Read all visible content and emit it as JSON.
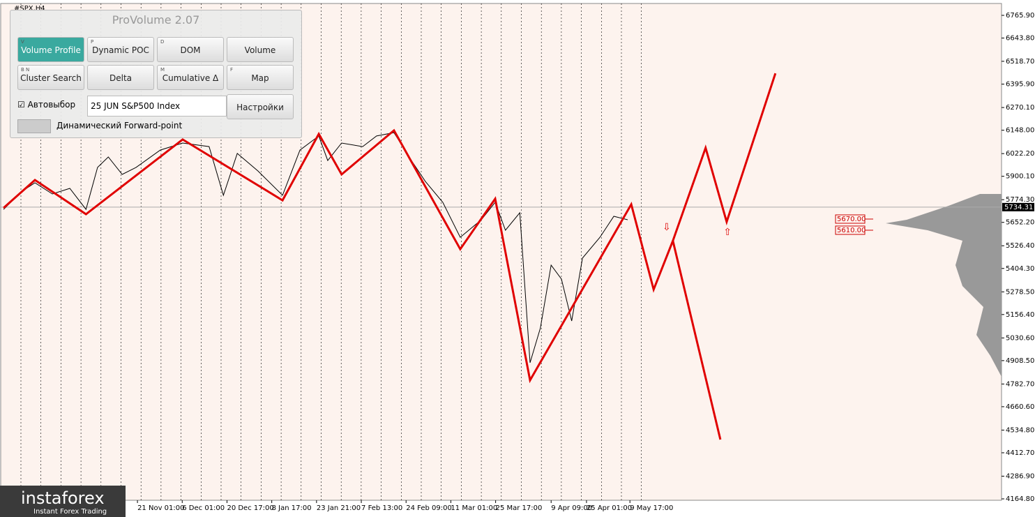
{
  "chart_data": {
    "type": "line",
    "symbol": "#SPX,H4",
    "categories": [
      "21 Nov 01:00",
      "6 Dec 01:00",
      "20 Dec 17:00",
      "8 Jan 17:00",
      "23 Jan 21:00",
      "7 Feb 13:00",
      "24 Feb 09:00",
      "11 Mar 01:00",
      "25 Mar 17:00",
      "9 Apr 09:00",
      "25 Apr 01:00",
      "9 May 17:00"
    ],
    "category_positions": [
      0,
      1,
      2,
      3,
      4,
      5,
      6,
      7,
      8,
      9.24,
      10.03,
      11
    ],
    "xlim": [
      -3.07,
      19.3
    ],
    "ylim": [
      4157.3,
      6829.7
    ],
    "yticks": [
      {
        "value": 6765.9,
        "label": "6765.90"
      },
      {
        "value": 6643.8,
        "label": "6643.80"
      },
      {
        "value": 6518.7,
        "label": "6518.70"
      },
      {
        "value": 6395.9,
        "label": "6395.90"
      },
      {
        "value": 6270.1,
        "label": "6270.10"
      },
      {
        "value": 6148,
        "label": "6148.00"
      },
      {
        "value": 6022.2,
        "label": "6022.20"
      },
      {
        "value": 5900.1,
        "label": "5900.10"
      },
      {
        "value": 5774.3,
        "label": "5774.30"
      },
      {
        "value": 5652.2,
        "label": "5652.20"
      },
      {
        "value": 5526.4,
        "label": "5526.40"
      },
      {
        "value": 5404.3,
        "label": "5404.30"
      },
      {
        "value": 5278.5,
        "label": "5278.50"
      },
      {
        "value": 5156.4,
        "label": "5156.40"
      },
      {
        "value": 5030.6,
        "label": "5030.60"
      },
      {
        "value": 4908.5,
        "label": "4908.50"
      },
      {
        "value": 4782.7,
        "label": "4782.70"
      },
      {
        "value": 4660.6,
        "label": "4660.60"
      },
      {
        "value": 4534.8,
        "label": "4534.80"
      },
      {
        "value": 4412.7,
        "label": "4412.70"
      },
      {
        "value": 4286.9,
        "label": "4286.90"
      },
      {
        "value": 4164.8,
        "label": "4164.80"
      }
    ],
    "series": [
      {
        "color": "#000000",
        "x": [
          -2.99,
          -2.6,
          -2.29,
          -1.9,
          -1.51,
          -1.15,
          -0.89,
          -0.65,
          -0.34,
          -0.03,
          0.51,
          1.01,
          1.6,
          1.92,
          2.23,
          2.69,
          3.24,
          3.63,
          4.05,
          4.25,
          4.56,
          5.03,
          5.34,
          5.73,
          6.12,
          6.43,
          6.82,
          7.21,
          7.68,
          7.99,
          8.22,
          8.54,
          8.77,
          9.0,
          9.24,
          9.47,
          9.7,
          9.94,
          10.33,
          10.64,
          10.95
        ],
        "values": [
          5722,
          5816,
          5865,
          5805,
          5835,
          5722,
          5948,
          6004,
          5910,
          5948,
          6041,
          6079,
          6060,
          5798,
          6023,
          5929,
          5798,
          6041,
          6117,
          5985,
          6079,
          6060,
          6117,
          6135,
          5985,
          5873,
          5760,
          5572,
          5666,
          5760,
          5610,
          5704,
          4897,
          5084,
          5422,
          5347,
          5122,
          5460,
          5572,
          5685,
          5666
        ]
      },
      {
        "color": "#e00000",
        "x": [
          -2.99,
          -2.29,
          -1.15,
          1.01,
          3.24,
          4.05,
          4.56,
          5.73,
          7.21,
          7.99,
          8.77,
          11.03,
          11.53,
          11.96,
          12.69,
          13.16,
          14.25
        ],
        "values": [
          5730,
          5880,
          5696,
          6098,
          5771,
          6128,
          5910,
          6147,
          5508,
          5779,
          4803,
          5749,
          5291,
          5553,
          6053,
          5655,
          6454
        ]
      },
      {
        "color": "#e00000",
        "x": [
          11.96,
          13.02
        ],
        "values": [
          5553,
          4484
        ]
      }
    ],
    "levels": [
      {
        "value": 5670,
        "label": "5670.00"
      },
      {
        "value": 5610,
        "label": "5610.00"
      }
    ],
    "current_price": {
      "value": 5734.31,
      "label": "5734.31"
    },
    "markers": [
      {
        "x": 11.82,
        "y": 5625,
        "symbol": "⇩"
      },
      {
        "x": 13.18,
        "y": 5599,
        "symbol": "⇧"
      }
    ]
  },
  "panel": {
    "title": "ProVolume 2.07",
    "buttons": [
      {
        "key": "V",
        "label": "Volume Profile"
      },
      {
        "key": "P",
        "label": "Dynamic POC"
      },
      {
        "key": "D",
        "label": "DOM"
      },
      {
        "key": "",
        "label": "Volume"
      },
      {
        "key": "B N",
        "label": "Cluster Search"
      },
      {
        "key": "",
        "label": "Delta"
      },
      {
        "key": "M",
        "label": "Cumulative Δ"
      },
      {
        "key": "F",
        "label": "Map"
      }
    ],
    "auto_label": "Автовыбор",
    "instrument": "25 JUN S&P500 Index",
    "settings": "Настройки",
    "forward": "Динамический Forward-point"
  },
  "logo": {
    "name": "instaforex",
    "tagline": "Instant Forex Trading"
  }
}
